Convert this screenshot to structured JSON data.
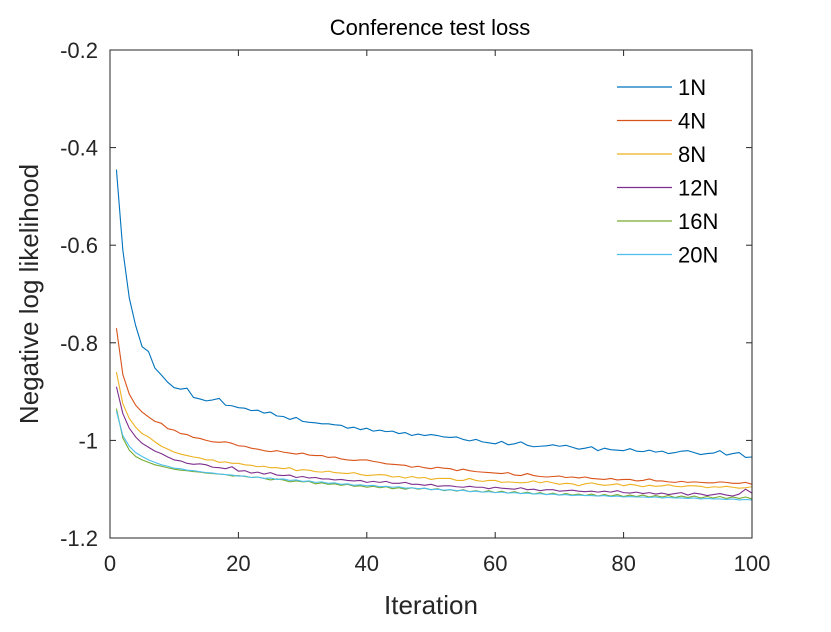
{
  "chart_data": {
    "type": "line",
    "title": "Conference test loss",
    "xlabel": "Iteration",
    "ylabel": "Negative log likelihood",
    "xlim": [
      0,
      100
    ],
    "ylim": [
      -1.2,
      -0.2
    ],
    "xticks": [
      "0",
      "20",
      "40",
      "60",
      "80",
      "100"
    ],
    "yticks": [
      "-0.2",
      "-0.4",
      "-0.6",
      "-0.8",
      "-1",
      "-1.2"
    ],
    "legend_position": "top-right",
    "grid": false,
    "x": [
      1,
      2,
      3,
      4,
      5,
      6,
      7,
      8,
      9,
      10,
      11,
      12,
      13,
      14,
      15,
      16,
      17,
      18,
      19,
      20,
      21,
      22,
      23,
      24,
      25,
      26,
      27,
      28,
      29,
      30,
      31,
      32,
      33,
      34,
      35,
      36,
      37,
      38,
      39,
      40,
      41,
      42,
      43,
      44,
      45,
      46,
      47,
      48,
      49,
      50,
      51,
      52,
      53,
      54,
      55,
      56,
      57,
      58,
      59,
      60,
      61,
      62,
      63,
      64,
      65,
      66,
      67,
      68,
      69,
      70,
      71,
      72,
      73,
      74,
      75,
      76,
      77,
      78,
      79,
      80,
      81,
      82,
      83,
      84,
      85,
      86,
      87,
      88,
      89,
      90,
      91,
      92,
      93,
      94,
      95,
      96,
      97,
      98,
      99,
      100
    ],
    "series": [
      {
        "name": "1N",
        "color": "#0072BD",
        "values": [
          -0.445,
          -0.61,
          -0.708,
          -0.765,
          -0.808,
          -0.818,
          -0.852,
          -0.866,
          -0.881,
          -0.892,
          -0.895,
          -0.893,
          -0.912,
          -0.915,
          -0.919,
          -0.917,
          -0.914,
          -0.928,
          -0.929,
          -0.933,
          -0.934,
          -0.939,
          -0.938,
          -0.944,
          -0.942,
          -0.95,
          -0.951,
          -0.957,
          -0.953,
          -0.961,
          -0.963,
          -0.964,
          -0.966,
          -0.966,
          -0.968,
          -0.969,
          -0.975,
          -0.973,
          -0.978,
          -0.975,
          -0.981,
          -0.979,
          -0.982,
          -0.981,
          -0.986,
          -0.984,
          -0.99,
          -0.987,
          -0.99,
          -0.988,
          -0.99,
          -0.993,
          -0.994,
          -0.993,
          -0.998,
          -1.001,
          -0.998,
          -1.003,
          -1.005,
          -1.007,
          -1.002,
          -1.009,
          -1.007,
          -1.003,
          -1.01,
          -1.013,
          -1.012,
          -1.011,
          -1.009,
          -1.012,
          -1.01,
          -1.014,
          -1.018,
          -1.016,
          -1.013,
          -1.021,
          -1.016,
          -1.019,
          -1.02,
          -1.021,
          -1.017,
          -1.022,
          -1.023,
          -1.02,
          -1.024,
          -1.022,
          -1.027,
          -1.025,
          -1.022,
          -1.021,
          -1.025,
          -1.029,
          -1.027,
          -1.026,
          -1.021,
          -1.03,
          -1.027,
          -1.025,
          -1.035,
          -1.034
        ]
      },
      {
        "name": "4N",
        "color": "#D95319",
        "values": [
          -0.77,
          -0.865,
          -0.905,
          -0.928,
          -0.942,
          -0.952,
          -0.961,
          -0.965,
          -0.976,
          -0.979,
          -0.986,
          -0.988,
          -0.994,
          -0.996,
          -1.0,
          -1.003,
          -1.004,
          -1.003,
          -1.006,
          -1.011,
          -1.012,
          -1.016,
          -1.018,
          -1.021,
          -1.023,
          -1.021,
          -1.024,
          -1.026,
          -1.028,
          -1.026,
          -1.03,
          -1.031,
          -1.031,
          -1.035,
          -1.034,
          -1.038,
          -1.04,
          -1.041,
          -1.04,
          -1.04,
          -1.043,
          -1.045,
          -1.048,
          -1.049,
          -1.05,
          -1.051,
          -1.055,
          -1.053,
          -1.056,
          -1.058,
          -1.055,
          -1.057,
          -1.058,
          -1.062,
          -1.059,
          -1.062,
          -1.064,
          -1.065,
          -1.066,
          -1.067,
          -1.068,
          -1.066,
          -1.071,
          -1.072,
          -1.068,
          -1.072,
          -1.074,
          -1.075,
          -1.074,
          -1.073,
          -1.076,
          -1.075,
          -1.077,
          -1.075,
          -1.078,
          -1.079,
          -1.08,
          -1.078,
          -1.081,
          -1.08,
          -1.08,
          -1.083,
          -1.082,
          -1.079,
          -1.083,
          -1.083,
          -1.085,
          -1.086,
          -1.084,
          -1.086,
          -1.085,
          -1.086,
          -1.087,
          -1.087,
          -1.085,
          -1.086,
          -1.088,
          -1.088,
          -1.086,
          -1.09
        ]
      },
      {
        "name": "8N",
        "color": "#EDB120",
        "values": [
          -0.86,
          -0.925,
          -0.955,
          -0.973,
          -0.986,
          -0.993,
          -1.003,
          -1.012,
          -1.018,
          -1.024,
          -1.028,
          -1.031,
          -1.034,
          -1.036,
          -1.04,
          -1.04,
          -1.045,
          -1.044,
          -1.047,
          -1.047,
          -1.05,
          -1.051,
          -1.054,
          -1.053,
          -1.056,
          -1.056,
          -1.058,
          -1.056,
          -1.062,
          -1.06,
          -1.061,
          -1.064,
          -1.065,
          -1.063,
          -1.066,
          -1.067,
          -1.068,
          -1.066,
          -1.07,
          -1.072,
          -1.071,
          -1.07,
          -1.071,
          -1.075,
          -1.074,
          -1.077,
          -1.074,
          -1.077,
          -1.076,
          -1.08,
          -1.078,
          -1.078,
          -1.078,
          -1.082,
          -1.082,
          -1.078,
          -1.082,
          -1.084,
          -1.082,
          -1.082,
          -1.086,
          -1.085,
          -1.086,
          -1.087,
          -1.086,
          -1.083,
          -1.087,
          -1.084,
          -1.087,
          -1.09,
          -1.088,
          -1.089,
          -1.093,
          -1.089,
          -1.087,
          -1.09,
          -1.092,
          -1.091,
          -1.089,
          -1.093,
          -1.09,
          -1.092,
          -1.095,
          -1.092,
          -1.094,
          -1.093,
          -1.091,
          -1.094,
          -1.095,
          -1.093,
          -1.093,
          -1.094,
          -1.097,
          -1.095,
          -1.096,
          -1.094,
          -1.096,
          -1.098,
          -1.097,
          -1.095
        ]
      },
      {
        "name": "12N",
        "color": "#7E2F8E",
        "values": [
          -0.89,
          -0.945,
          -0.975,
          -0.993,
          -1.006,
          -1.014,
          -1.022,
          -1.027,
          -1.034,
          -1.04,
          -1.042,
          -1.047,
          -1.049,
          -1.048,
          -1.05,
          -1.055,
          -1.056,
          -1.058,
          -1.054,
          -1.063,
          -1.062,
          -1.067,
          -1.065,
          -1.069,
          -1.066,
          -1.071,
          -1.072,
          -1.071,
          -1.076,
          -1.074,
          -1.077,
          -1.076,
          -1.079,
          -1.079,
          -1.081,
          -1.08,
          -1.082,
          -1.083,
          -1.082,
          -1.086,
          -1.084,
          -1.086,
          -1.084,
          -1.088,
          -1.088,
          -1.086,
          -1.09,
          -1.09,
          -1.092,
          -1.09,
          -1.094,
          -1.093,
          -1.093,
          -1.095,
          -1.096,
          -1.094,
          -1.096,
          -1.096,
          -1.099,
          -1.096,
          -1.098,
          -1.099,
          -1.1,
          -1.097,
          -1.101,
          -1.1,
          -1.103,
          -1.101,
          -1.101,
          -1.104,
          -1.103,
          -1.102,
          -1.104,
          -1.105,
          -1.104,
          -1.106,
          -1.104,
          -1.106,
          -1.103,
          -1.107,
          -1.108,
          -1.106,
          -1.109,
          -1.107,
          -1.11,
          -1.108,
          -1.111,
          -1.109,
          -1.107,
          -1.112,
          -1.108,
          -1.11,
          -1.113,
          -1.111,
          -1.109,
          -1.112,
          -1.114,
          -1.11,
          -1.1,
          -1.108
        ]
      },
      {
        "name": "16N",
        "color": "#77AC30",
        "values": [
          -0.935,
          -0.995,
          -1.02,
          -1.033,
          -1.04,
          -1.045,
          -1.05,
          -1.053,
          -1.056,
          -1.059,
          -1.061,
          -1.062,
          -1.064,
          -1.065,
          -1.067,
          -1.068,
          -1.069,
          -1.07,
          -1.073,
          -1.072,
          -1.074,
          -1.076,
          -1.075,
          -1.078,
          -1.081,
          -1.079,
          -1.081,
          -1.085,
          -1.083,
          -1.085,
          -1.084,
          -1.089,
          -1.087,
          -1.09,
          -1.089,
          -1.092,
          -1.09,
          -1.094,
          -1.093,
          -1.096,
          -1.094,
          -1.097,
          -1.095,
          -1.099,
          -1.097,
          -1.1,
          -1.097,
          -1.1,
          -1.098,
          -1.101,
          -1.099,
          -1.103,
          -1.101,
          -1.104,
          -1.101,
          -1.105,
          -1.103,
          -1.106,
          -1.103,
          -1.107,
          -1.104,
          -1.108,
          -1.105,
          -1.109,
          -1.106,
          -1.11,
          -1.107,
          -1.111,
          -1.108,
          -1.112,
          -1.109,
          -1.112,
          -1.11,
          -1.113,
          -1.11,
          -1.114,
          -1.111,
          -1.114,
          -1.111,
          -1.115,
          -1.112,
          -1.115,
          -1.112,
          -1.116,
          -1.113,
          -1.116,
          -1.113,
          -1.117,
          -1.114,
          -1.117,
          -1.114,
          -1.118,
          -1.115,
          -1.118,
          -1.115,
          -1.119,
          -1.116,
          -1.119,
          -1.116,
          -1.12
        ]
      },
      {
        "name": "20N",
        "color": "#4DBEEE",
        "values": [
          -0.94,
          -0.99,
          -1.012,
          -1.025,
          -1.033,
          -1.04,
          -1.045,
          -1.05,
          -1.053,
          -1.057,
          -1.058,
          -1.061,
          -1.062,
          -1.064,
          -1.066,
          -1.067,
          -1.069,
          -1.07,
          -1.071,
          -1.073,
          -1.073,
          -1.076,
          -1.075,
          -1.078,
          -1.077,
          -1.08,
          -1.079,
          -1.082,
          -1.081,
          -1.084,
          -1.083,
          -1.086,
          -1.085,
          -1.088,
          -1.087,
          -1.09,
          -1.089,
          -1.092,
          -1.091,
          -1.093,
          -1.092,
          -1.095,
          -1.094,
          -1.096,
          -1.095,
          -1.098,
          -1.097,
          -1.099,
          -1.098,
          -1.101,
          -1.1,
          -1.102,
          -1.101,
          -1.103,
          -1.102,
          -1.105,
          -1.104,
          -1.106,
          -1.105,
          -1.107,
          -1.106,
          -1.108,
          -1.107,
          -1.109,
          -1.108,
          -1.11,
          -1.109,
          -1.111,
          -1.11,
          -1.112,
          -1.111,
          -1.113,
          -1.112,
          -1.113,
          -1.113,
          -1.114,
          -1.113,
          -1.115,
          -1.114,
          -1.116,
          -1.115,
          -1.116,
          -1.116,
          -1.117,
          -1.116,
          -1.118,
          -1.117,
          -1.118,
          -1.118,
          -1.119,
          -1.118,
          -1.12,
          -1.119,
          -1.12,
          -1.12,
          -1.121,
          -1.12,
          -1.122,
          -1.121,
          -1.122
        ]
      }
    ]
  }
}
